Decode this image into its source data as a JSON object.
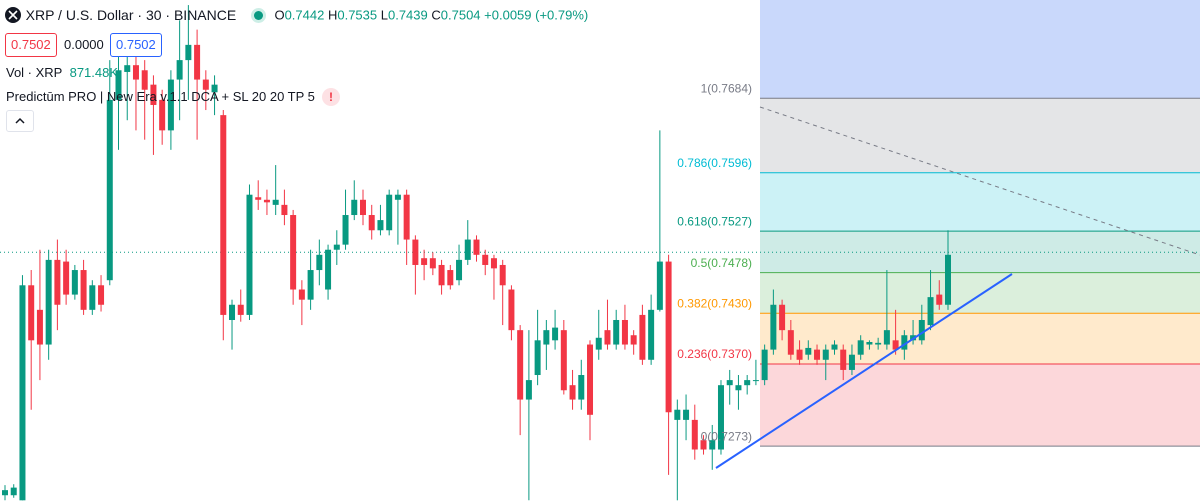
{
  "header": {
    "symbol": "XRP / U.S. Dollar · 30 · BINANCE",
    "ohlc": [
      {
        "label": "O",
        "value": "0.7442"
      },
      {
        "label": "H",
        "value": "0.7535"
      },
      {
        "label": "L",
        "value": "0.7439"
      },
      {
        "label": "C",
        "value": "0.7504"
      }
    ],
    "change": "+0.0059 (+0.79%)",
    "sell": "0.7502",
    "spread": "0.0000",
    "buy": "0.7502",
    "volume_label": "Vol · XRP",
    "volume_value": "871.48K",
    "indicator": "Predictūm PRO | New Era v.1.1 DCA + SL 20 20 TP 5",
    "warning": "!"
  },
  "chart_data": {
    "type": "candlestick",
    "ylim": [
      0.7207,
      0.78
    ],
    "up_color": "#089981",
    "down_color": "#f23645",
    "last_price": 0.7502,
    "last_price_color": "#089981",
    "candles": [
      [
        0.7215,
        0.7227,
        0.7209,
        0.7221
      ],
      [
        0.7215,
        0.7228,
        0.7212,
        0.7224
      ],
      [
        0.7209,
        0.7475,
        0.7209,
        0.7463
      ],
      [
        0.7463,
        0.7481,
        0.7316,
        0.7398
      ],
      [
        0.7434,
        0.7505,
        0.7351,
        0.7393
      ],
      [
        0.7393,
        0.7505,
        0.7375,
        0.7493
      ],
      [
        0.7493,
        0.7517,
        0.741,
        0.744
      ],
      [
        0.7491,
        0.7505,
        0.744,
        0.7452
      ],
      [
        0.7452,
        0.7487,
        0.7446,
        0.7481
      ],
      [
        0.7481,
        0.7493,
        0.7428,
        0.7434
      ],
      [
        0.7434,
        0.7469,
        0.7428,
        0.7463
      ],
      [
        0.7463,
        0.7475,
        0.7432,
        0.744
      ],
      [
        0.7469,
        0.7729,
        0.7463,
        0.7682
      ],
      [
        0.7682,
        0.7741,
        0.7623,
        0.7717
      ],
      [
        0.7715,
        0.7753,
        0.7658,
        0.7723
      ],
      [
        0.7723,
        0.7735,
        0.7646,
        0.7706
      ],
      [
        0.7717,
        0.7729,
        0.7635,
        0.7694
      ],
      [
        0.77,
        0.7711,
        0.7617,
        0.7676
      ],
      [
        0.7682,
        0.7694,
        0.7629,
        0.7646
      ],
      [
        0.7646,
        0.7717,
        0.7623,
        0.7706
      ],
      [
        0.7706,
        0.7776,
        0.7658,
        0.7729
      ],
      [
        0.7729,
        0.7794,
        0.7682,
        0.7747
      ],
      [
        0.7747,
        0.7765,
        0.7635,
        0.7706
      ],
      [
        0.7706,
        0.7717,
        0.767,
        0.7694
      ],
      [
        0.7691,
        0.7711,
        0.7664,
        0.77
      ],
      [
        0.7664,
        0.767,
        0.7398,
        0.7428
      ],
      [
        0.7422,
        0.7446,
        0.7387,
        0.744
      ],
      [
        0.744,
        0.7458,
        0.742,
        0.7428
      ],
      [
        0.7428,
        0.7582,
        0.7422,
        0.757
      ],
      [
        0.7567,
        0.7587,
        0.7552,
        0.7564
      ],
      [
        0.7564,
        0.7576,
        0.7546,
        0.7561
      ],
      [
        0.7558,
        0.7605,
        0.7546,
        0.7564
      ],
      [
        0.7558,
        0.7576,
        0.7534,
        0.7546
      ],
      [
        0.7546,
        0.7552,
        0.744,
        0.7458
      ],
      [
        0.7458,
        0.7469,
        0.7416,
        0.7446
      ],
      [
        0.7446,
        0.7505,
        0.7434,
        0.7481
      ],
      [
        0.7481,
        0.7517,
        0.7463,
        0.7499
      ],
      [
        0.7458,
        0.7511,
        0.7446,
        0.7505
      ],
      [
        0.7505,
        0.7528,
        0.7487,
        0.7511
      ],
      [
        0.7511,
        0.7576,
        0.7505,
        0.7546
      ],
      [
        0.7546,
        0.7587,
        0.754,
        0.7564
      ],
      [
        0.7564,
        0.7576,
        0.7534,
        0.7546
      ],
      [
        0.7546,
        0.7558,
        0.7517,
        0.7528
      ],
      [
        0.7528,
        0.7558,
        0.7522,
        0.754
      ],
      [
        0.7528,
        0.7576,
        0.7522,
        0.757
      ],
      [
        0.7564,
        0.7576,
        0.7511,
        0.757
      ],
      [
        0.757,
        0.7576,
        0.7487,
        0.7517
      ],
      [
        0.7517,
        0.7522,
        0.7452,
        0.7487
      ],
      [
        0.7495,
        0.7505,
        0.7469,
        0.7487
      ],
      [
        0.7495,
        0.7502,
        0.7475,
        0.7483
      ],
      [
        0.7487,
        0.7493,
        0.7452,
        0.7463
      ],
      [
        0.7481,
        0.7487,
        0.7458,
        0.7463
      ],
      [
        0.7469,
        0.7511,
        0.7463,
        0.7493
      ],
      [
        0.7493,
        0.754,
        0.7487,
        0.7517
      ],
      [
        0.7517,
        0.7522,
        0.7491,
        0.7499
      ],
      [
        0.7499,
        0.7505,
        0.7475,
        0.7487
      ],
      [
        0.7495,
        0.7499,
        0.7446,
        0.7483
      ],
      [
        0.7487,
        0.7493,
        0.7416,
        0.7463
      ],
      [
        0.7458,
        0.7463,
        0.7398,
        0.741
      ],
      [
        0.741,
        0.7416,
        0.7286,
        0.7328
      ],
      [
        0.7328,
        0.741,
        0.7209,
        0.7351
      ],
      [
        0.7357,
        0.7434,
        0.7345,
        0.7398
      ],
      [
        0.7393,
        0.7422,
        0.7363,
        0.741
      ],
      [
        0.7398,
        0.7434,
        0.7387,
        0.7413
      ],
      [
        0.741,
        0.7422,
        0.7334,
        0.7339
      ],
      [
        0.7345,
        0.7363,
        0.7316,
        0.7328
      ],
      [
        0.7328,
        0.7375,
        0.7316,
        0.7357
      ],
      [
        0.7393,
        0.7398,
        0.728,
        0.731
      ],
      [
        0.7387,
        0.7434,
        0.7375,
        0.7401
      ],
      [
        0.741,
        0.7446,
        0.7387,
        0.7393
      ],
      [
        0.7393,
        0.7434,
        0.7387,
        0.7422
      ],
      [
        0.7422,
        0.744,
        0.7387,
        0.7393
      ],
      [
        0.7404,
        0.741,
        0.7381,
        0.7393
      ],
      [
        0.7428,
        0.744,
        0.7369,
        0.7375
      ],
      [
        0.7375,
        0.7452,
        0.7369,
        0.7434
      ],
      [
        0.7434,
        0.7646,
        0.7432,
        0.7491
      ],
      [
        0.7491,
        0.7499,
        0.7239,
        0.7313
      ],
      [
        0.7304,
        0.7328,
        0.7209,
        0.7316
      ],
      [
        0.7304,
        0.7334,
        0.728,
        0.7316
      ],
      [
        0.7304,
        0.7322,
        0.7257,
        0.7269
      ],
      [
        0.728,
        0.7286,
        0.7263,
        0.7269
      ],
      [
        0.7269,
        0.7298,
        0.7245,
        0.728
      ],
      [
        0.7269,
        0.7351,
        0.7263,
        0.7345
      ],
      [
        0.7345,
        0.7363,
        0.7322,
        0.7351
      ],
      [
        0.7339,
        0.7357,
        0.7316,
        0.7345
      ],
      [
        0.7345,
        0.7357,
        0.7334,
        0.7351
      ],
      [
        0.735,
        0.7375,
        0.7345,
        0.7351
      ],
      [
        0.7351,
        0.7393,
        0.7345,
        0.7387
      ],
      [
        0.7387,
        0.7458,
        0.7381,
        0.744
      ],
      [
        0.744,
        0.7446,
        0.7398,
        0.741
      ],
      [
        0.741,
        0.7422,
        0.7375,
        0.7381
      ],
      [
        0.7387,
        0.7398,
        0.7369,
        0.7375
      ],
      [
        0.7381,
        0.7398,
        0.7375,
        0.7389
      ],
      [
        0.7387,
        0.7393,
        0.7369,
        0.7375
      ],
      [
        0.7375,
        0.7393,
        0.7351,
        0.7387
      ],
      [
        0.7387,
        0.7398,
        0.7381,
        0.7393
      ],
      [
        0.7387,
        0.7393,
        0.7351,
        0.7363
      ],
      [
        0.7363,
        0.7393,
        0.7357,
        0.7381
      ],
      [
        0.7381,
        0.7404,
        0.7375,
        0.7398
      ],
      [
        0.7393,
        0.7398,
        0.7387,
        0.7396
      ],
      [
        0.7393,
        0.7401,
        0.7387,
        0.7395
      ],
      [
        0.7393,
        0.7481,
        0.7387,
        0.741
      ],
      [
        0.7398,
        0.7434,
        0.7381,
        0.7387
      ],
      [
        0.7387,
        0.741,
        0.7375,
        0.7404
      ],
      [
        0.7398,
        0.7422,
        0.7393,
        0.7404
      ],
      [
        0.7398,
        0.744,
        0.7393,
        0.7422
      ],
      [
        0.7416,
        0.7481,
        0.741,
        0.7449
      ],
      [
        0.7452,
        0.7469,
        0.7434,
        0.744
      ],
      [
        0.744,
        0.7528,
        0.7434,
        0.7499
      ]
    ],
    "fib": {
      "background": "#c9d8fb",
      "levels": [
        {
          "price": 0.7684,
          "label": "1(0.7684)",
          "color": "#787b86"
        },
        {
          "price": 0.7596,
          "label": "0.786(0.7596)",
          "color": "#00bcd4"
        },
        {
          "price": 0.7527,
          "label": "0.618(0.7527)",
          "color": "#089981"
        },
        {
          "price": 0.7478,
          "label": "0.5(0.7478)",
          "color": "#4caf50"
        },
        {
          "price": 0.743,
          "label": "0.382(0.7430)",
          "color": "#ff9800"
        },
        {
          "price": 0.737,
          "label": "0.236(0.7370)",
          "color": "#f23645"
        },
        {
          "price": 0.7273,
          "label": "0(0.7273)",
          "color": "#787b86"
        }
      ]
    }
  }
}
